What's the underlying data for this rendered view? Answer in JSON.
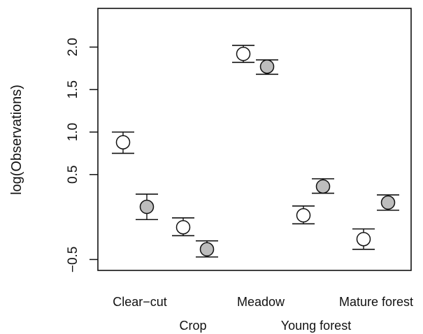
{
  "chart_data": {
    "type": "scatter",
    "title": "",
    "xlabel": "",
    "ylabel": "log(Observations)",
    "ylim": [
      -0.62,
      2.35
    ],
    "yticks": [
      -0.5,
      0.5,
      1.0,
      1.5,
      2.0
    ],
    "ytick_labels": [
      "−0.5",
      "0.5",
      "1.0",
      "1.5",
      "2.0"
    ],
    "categories": [
      "Clear−cut",
      "Crop",
      "Meadow",
      "Young forest",
      "Mature forest"
    ],
    "grid": false,
    "legend": "none",
    "series": [
      {
        "marker": "open-circle",
        "values": [
          0.88,
          -0.12,
          1.92,
          0.02,
          -0.26
        ],
        "lower": [
          0.75,
          -0.22,
          1.82,
          -0.08,
          -0.38
        ],
        "upper": [
          1.0,
          -0.01,
          2.02,
          0.13,
          -0.14
        ]
      },
      {
        "marker": "filled-circle",
        "values": [
          0.12,
          -0.38,
          1.77,
          0.36,
          0.17
        ],
        "lower": [
          -0.03,
          -0.47,
          1.68,
          0.28,
          0.08
        ],
        "upper": [
          0.27,
          -0.28,
          1.85,
          0.45,
          0.26
        ]
      }
    ],
    "colors": {
      "open_fill": "#ffffff",
      "filled_fill": "#bdbdbd",
      "stroke": "#111111"
    }
  }
}
